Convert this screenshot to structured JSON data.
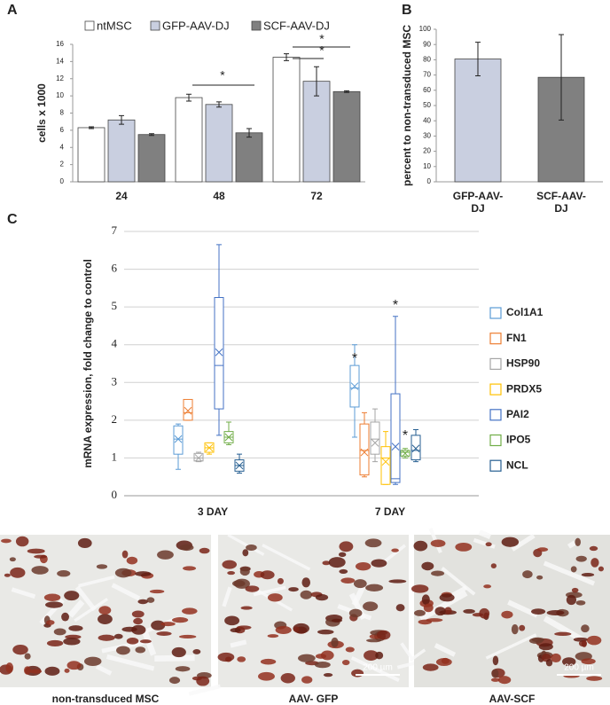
{
  "chart_data": [
    {
      "type": "bar",
      "label": "A",
      "ylabel": "cells  x 1000",
      "categories": [
        "24",
        "48",
        "72"
      ],
      "series": [
        {
          "name": "ntMSC",
          "color": "#ffffff",
          "values": [
            6.3,
            9.8,
            14.5
          ],
          "errors": [
            0.1,
            0.4,
            0.4
          ]
        },
        {
          "name": "GFP-AAV-DJ",
          "color": "#c9cfe0",
          "values": [
            7.2,
            9.0,
            11.7
          ],
          "errors": [
            0.5,
            0.3,
            1.7
          ]
        },
        {
          "name": "SCF-AAV-DJ",
          "color": "#808080",
          "values": [
            5.5,
            5.7,
            10.5
          ],
          "errors": [
            0.1,
            0.5,
            0.1
          ]
        }
      ],
      "ylim": [
        0,
        16
      ],
      "yticks": [
        0,
        2,
        4,
        6,
        8,
        10,
        12,
        14,
        16
      ],
      "grid": false,
      "legend": "top",
      "annotations": [
        "*",
        "*",
        "*"
      ]
    },
    {
      "type": "bar",
      "label": "B",
      "ylabel": "percent to non-transduced MSC",
      "categories": [
        "GFP-AAV-DJ",
        "SCF-AAV-DJ"
      ],
      "series": [
        {
          "colors": [
            "#c9cfe0",
            "#808080"
          ],
          "values": [
            80.5,
            68.5
          ],
          "errors": [
            11,
            28
          ]
        }
      ],
      "ylim": [
        0,
        100
      ],
      "yticks": [
        0,
        10,
        20,
        30,
        40,
        50,
        60,
        70,
        80,
        90,
        100
      ],
      "grid": false
    },
    {
      "type": "box",
      "label": "C",
      "ylabel": "mRNA expression, fold change to control",
      "categories": [
        "3 DAY",
        "7 DAY"
      ],
      "series": [
        {
          "name": "Col1A1",
          "color": "#5b9bd5",
          "boxes": [
            {
              "min": 0.7,
              "q1": 1.1,
              "median": 1.5,
              "q3": 1.85,
              "max": 1.9,
              "mean": 1.5
            },
            {
              "min": 1.55,
              "q1": 2.35,
              "median": 2.85,
              "q3": 3.45,
              "max": 4.0,
              "mean": 2.9
            }
          ]
        },
        {
          "name": "FN1",
          "color": "#ed7d31",
          "boxes": [
            {
              "min": 2.0,
              "q1": 2.0,
              "median": 2.2,
              "q3": 2.55,
              "max": 2.55,
              "mean": 2.25
            },
            {
              "min": 0.5,
              "q1": 0.55,
              "median": 1.2,
              "q3": 1.9,
              "max": 2.2,
              "mean": 1.15
            }
          ]
        },
        {
          "name": "HSP90",
          "color": "#a5a5a5",
          "boxes": [
            {
              "min": 0.9,
              "q1": 0.92,
              "median": 1.0,
              "q3": 1.12,
              "max": 1.15,
              "mean": 1.0
            },
            {
              "min": 0.9,
              "q1": 1.1,
              "median": 1.5,
              "q3": 1.95,
              "max": 2.3,
              "mean": 1.4
            }
          ]
        },
        {
          "name": "PRDX5",
          "color": "#ffc000",
          "boxes": [
            {
              "min": 1.1,
              "q1": 1.15,
              "median": 1.27,
              "q3": 1.4,
              "max": 1.4,
              "mean": 1.27
            },
            {
              "min": 0.3,
              "q1": 0.3,
              "median": 1.0,
              "q3": 1.3,
              "max": 1.7,
              "mean": 0.9
            }
          ]
        },
        {
          "name": "PAI2",
          "color": "#4472c4",
          "boxes": [
            {
              "min": 1.6,
              "q1": 2.3,
              "median": 3.45,
              "q3": 5.25,
              "max": 6.65,
              "mean": 3.8
            },
            {
              "min": 0.3,
              "q1": 0.35,
              "median": 0.45,
              "q3": 2.7,
              "max": 4.75,
              "mean": 1.3
            }
          ]
        },
        {
          "name": "IPO5",
          "color": "#70ad47",
          "boxes": [
            {
              "min": 1.35,
              "q1": 1.4,
              "median": 1.55,
              "q3": 1.7,
              "max": 1.95,
              "mean": 1.55
            },
            {
              "min": 1.0,
              "q1": 1.05,
              "median": 1.15,
              "q3": 1.2,
              "max": 1.25,
              "mean": 1.12
            }
          ]
        },
        {
          "name": "NCL",
          "color": "#255e91",
          "boxes": [
            {
              "min": 0.6,
              "q1": 0.65,
              "median": 0.8,
              "q3": 0.95,
              "max": 1.1,
              "mean": 0.8
            },
            {
              "min": 0.9,
              "q1": 0.95,
              "median": 1.2,
              "q3": 1.6,
              "max": 1.75,
              "mean": 1.25
            }
          ]
        }
      ],
      "ylim": [
        0,
        7
      ],
      "yticks": [
        0,
        1,
        2,
        3,
        4,
        5,
        6,
        7
      ],
      "grid": true,
      "legend": "right",
      "annotations": [
        "*",
        "*",
        "*"
      ]
    }
  ],
  "images": [
    {
      "caption": "non-transduced MSC"
    },
    {
      "caption": "AAV- GFP",
      "scale_bar": "200 µm"
    },
    {
      "caption": "AAV-SCF",
      "scale_bar": "200 µm"
    }
  ]
}
